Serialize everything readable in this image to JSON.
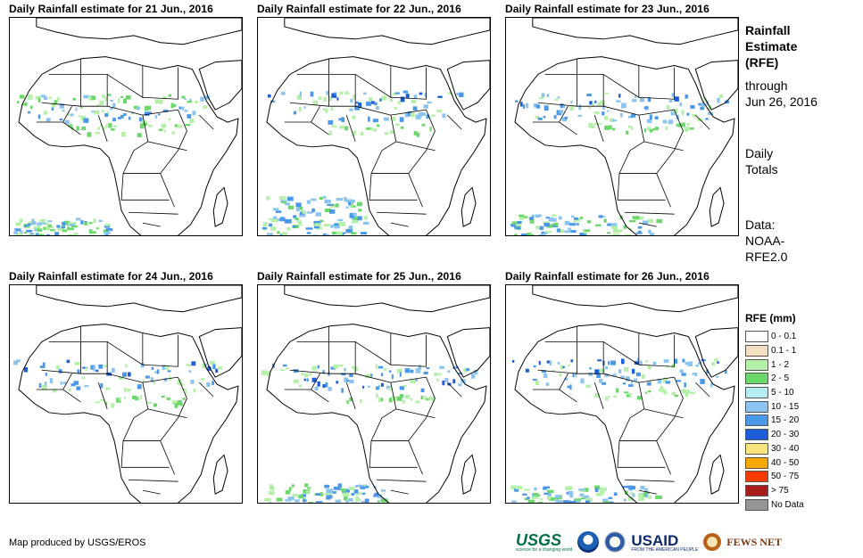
{
  "panels": [
    {
      "title": "Daily Rainfall estimate for 21 Jun., 2016"
    },
    {
      "title": "Daily Rainfall estimate for 22 Jun., 2016"
    },
    {
      "title": "Daily Rainfall estimate for 23 Jun., 2016"
    },
    {
      "title": "Daily Rainfall estimate for 24 Jun., 2016"
    },
    {
      "title": "Daily Rainfall estimate for 25 Jun., 2016"
    },
    {
      "title": "Daily Rainfall estimate for 26 Jun., 2016"
    }
  ],
  "sidebar": {
    "title_lines": [
      "Rainfall",
      "Estimate",
      "(RFE)"
    ],
    "through_lines": [
      "through",
      "Jun 26, 2016"
    ],
    "totals_lines": [
      "Daily",
      "Totals"
    ],
    "data_lines": [
      "Data:",
      "NOAA-",
      "RFE2.0"
    ]
  },
  "legend": {
    "title": "RFE (mm)",
    "items": [
      {
        "label": "0 - 0.1",
        "color": "#ffffff"
      },
      {
        "label": "0.1 - 1",
        "color": "#f3dfc1"
      },
      {
        "label": "1 - 2",
        "color": "#b4f0a8"
      },
      {
        "label": "2 - 5",
        "color": "#6cd86c"
      },
      {
        "label": "5 - 10",
        "color": "#b4ecf0"
      },
      {
        "label": "10 - 15",
        "color": "#8cc4f0"
      },
      {
        "label": "15 - 20",
        "color": "#4c98e8"
      },
      {
        "label": "20 - 30",
        "color": "#1c5ed8"
      },
      {
        "label": "30 - 40",
        "color": "#fce47c"
      },
      {
        "label": "40 - 50",
        "color": "#f8a800"
      },
      {
        "label": "50 - 75",
        "color": "#f83c00"
      },
      {
        "label": "> 75",
        "color": "#a81c1c"
      },
      {
        "label": "No Data",
        "color": "#969696"
      }
    ]
  },
  "credit": "Map produced by USGS/EROS",
  "logos": {
    "usgs": "USGS",
    "usgs_tagline": "science for a changing world",
    "usaid": "USAID",
    "usaid_tagline": "FROM THE AMERICAN PEOPLE",
    "fews": "FEWS NET"
  }
}
